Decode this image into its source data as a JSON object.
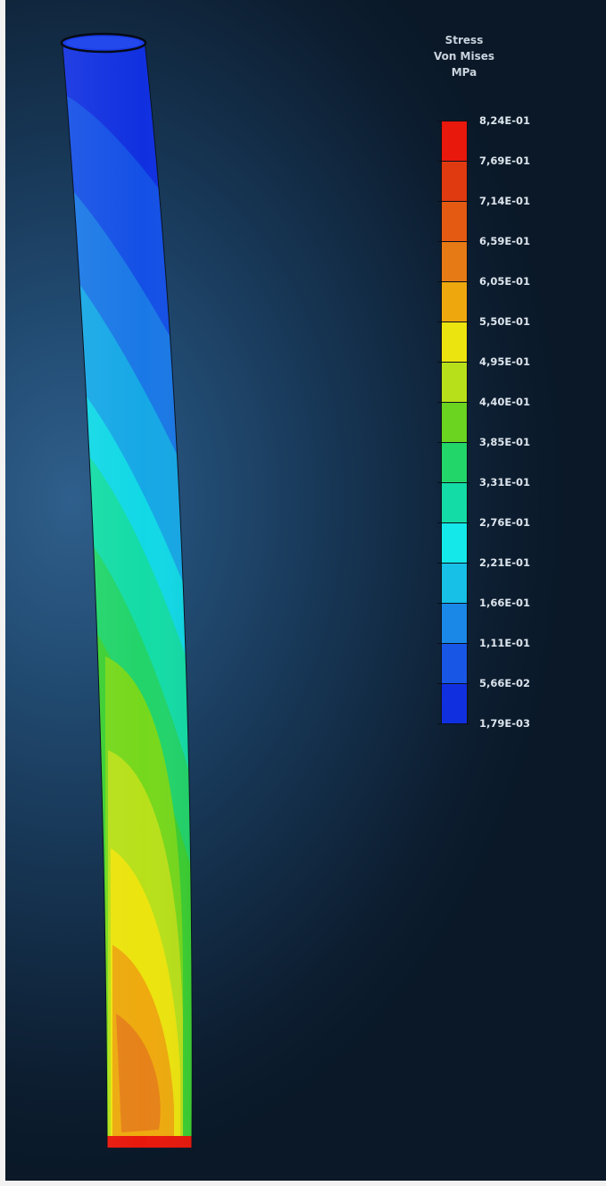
{
  "legend": {
    "title_lines": [
      "Stress",
      "Von Mises",
      "MPa"
    ],
    "ticks": [
      "8,24E-01",
      "7,69E-01",
      "7,14E-01",
      "6,59E-01",
      "6,05E-01",
      "5,50E-01",
      "4,95E-01",
      "4,40E-01",
      "3,85E-01",
      "3,31E-01",
      "2,76E-01",
      "2,21E-01",
      "1,66E-01",
      "1,11E-01",
      "5,66E-02",
      "1,79E-03"
    ],
    "band_colors": [
      "#e8180c",
      "#e03a10",
      "#e45a12",
      "#e67a14",
      "#eea80e",
      "#ece40e",
      "#b8e01a",
      "#6ad420",
      "#22d66a",
      "#14dca6",
      "#14e8e8",
      "#16c0e6",
      "#1a88e6",
      "#1856e6",
      "#1030e0"
    ]
  },
  "colors": {
    "background": "#1a3a5a",
    "frame": "#f2f2f2"
  }
}
